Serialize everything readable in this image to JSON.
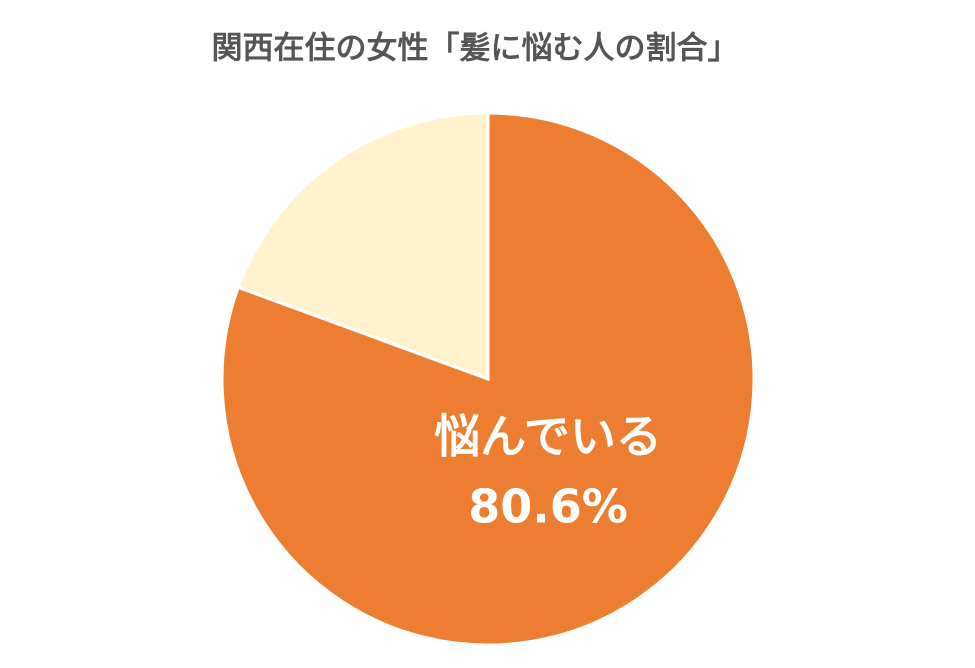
{
  "chart_data": {
    "type": "pie",
    "title": "関西在住の女性「髪に悩む人の割合」",
    "categories": [
      "悩んでいる",
      null
    ],
    "values": [
      80.6,
      19.4
    ],
    "value_labels": [
      "80.6%",
      null
    ],
    "colors": [
      "#ed7d31",
      "#fff2cc"
    ]
  }
}
